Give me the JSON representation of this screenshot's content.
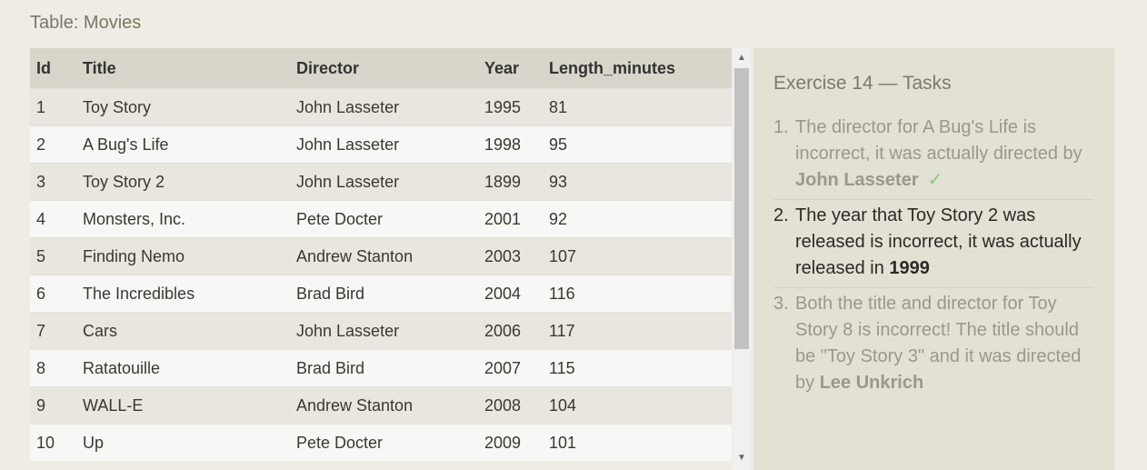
{
  "caption": "Table: Movies",
  "table": {
    "columns": [
      "Id",
      "Title",
      "Director",
      "Year",
      "Length_minutes"
    ],
    "rows": [
      [
        "1",
        "Toy Story",
        "John Lasseter",
        "1995",
        "81"
      ],
      [
        "2",
        "A Bug's Life",
        "John Lasseter",
        "1998",
        "95"
      ],
      [
        "3",
        "Toy Story 2",
        "John Lasseter",
        "1899",
        "93"
      ],
      [
        "4",
        "Monsters, Inc.",
        "Pete Docter",
        "2001",
        "92"
      ],
      [
        "5",
        "Finding Nemo",
        "Andrew Stanton",
        "2003",
        "107"
      ],
      [
        "6",
        "The Incredibles",
        "Brad Bird",
        "2004",
        "116"
      ],
      [
        "7",
        "Cars",
        "John Lasseter",
        "2006",
        "117"
      ],
      [
        "8",
        "Ratatouille",
        "Brad Bird",
        "2007",
        "115"
      ],
      [
        "9",
        "WALL-E",
        "Andrew Stanton",
        "2008",
        "104"
      ],
      [
        "10",
        "Up",
        "Pete Docter",
        "2009",
        "101"
      ]
    ]
  },
  "scrollbar": {
    "up_icon": "▲",
    "down_icon": "▼"
  },
  "tasks": {
    "title": "Exercise 14 — Tasks",
    "items": [
      {
        "num": "1.",
        "text": "The director for A Bug's Life is incorrect, it was actually directed by ",
        "bold": "John Lasseter",
        "after": "",
        "status": "done",
        "check": "✓"
      },
      {
        "num": "2.",
        "text": "The year that Toy Story 2 was released is incorrect, it was actually released in ",
        "bold": "1999",
        "after": "",
        "status": "current"
      },
      {
        "num": "3.",
        "text": "Both the title and director for Toy Story 8 is incorrect! The title should be \"Toy Story 3\" and it was directed by ",
        "bold": "Lee Unkrich",
        "after": "",
        "status": "pending"
      }
    ]
  },
  "colors": {
    "background": "#efece5",
    "header_bg": "#d8d6ca",
    "panel_bg": "#e3e0d4",
    "check": "#7fcf80"
  }
}
